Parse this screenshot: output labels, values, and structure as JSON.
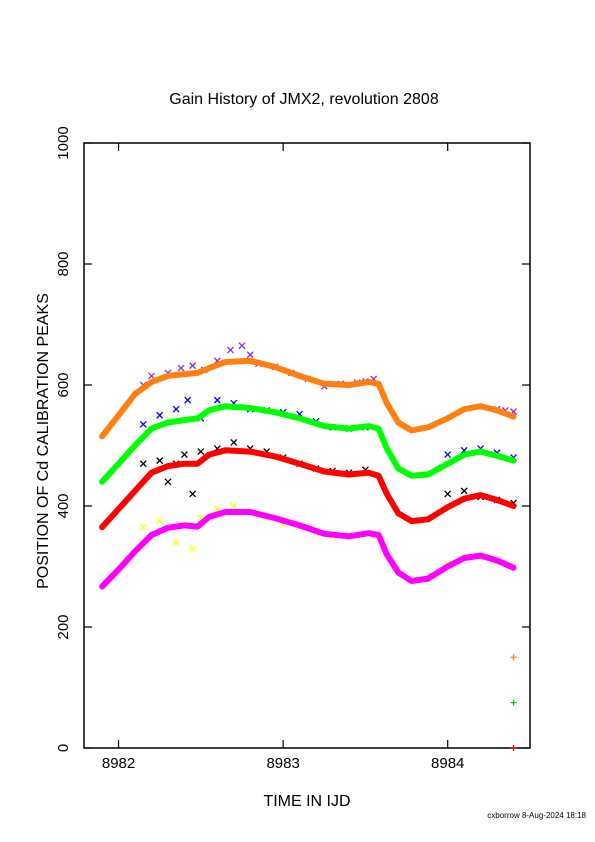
{
  "chart_data": {
    "type": "scatter",
    "title": "Gain History of JMX2, revolution 2808",
    "xlabel": "TIME IN IJD",
    "ylabel": "POSITION OF Cd CALIBRATION PEAKS",
    "xlim": [
      8981.79,
      8984.5
    ],
    "ylim": [
      0,
      1000
    ],
    "x_ticks": [
      8982,
      8983,
      8984
    ],
    "y_ticks": [
      0,
      200,
      400,
      600,
      800,
      1000
    ],
    "grid": false,
    "footer": "cxborrow  8-Aug-2024 18:18",
    "series": [
      {
        "color": "#8a2be2",
        "marker": "x",
        "points": [
          [
            8982.15,
            600
          ],
          [
            8982.2,
            615
          ],
          [
            8982.3,
            620
          ],
          [
            8982.38,
            628
          ],
          [
            8982.45,
            632
          ],
          [
            8982.52,
            625
          ],
          [
            8982.6,
            640
          ],
          [
            8982.68,
            658
          ],
          [
            8982.75,
            665
          ],
          [
            8982.8,
            650
          ],
          [
            8982.85,
            635
          ],
          [
            8982.95,
            630
          ],
          [
            8983.05,
            620
          ],
          [
            8983.15,
            610
          ],
          [
            8983.25,
            598
          ],
          [
            8983.35,
            602
          ],
          [
            8983.45,
            604
          ],
          [
            8983.5,
            606
          ],
          [
            8983.55,
            610
          ],
          [
            8984.3,
            560
          ],
          [
            8984.35,
            558
          ],
          [
            8984.4,
            556
          ]
        ]
      },
      {
        "color": "#ff7f11",
        "marker": "line",
        "points": [
          [
            8981.9,
            515
          ],
          [
            8982,
            550
          ],
          [
            8982.1,
            585
          ],
          [
            8982.2,
            605
          ],
          [
            8982.3,
            615
          ],
          [
            8982.4,
            618
          ],
          [
            8982.48,
            620
          ],
          [
            8982.55,
            628
          ],
          [
            8982.65,
            638
          ],
          [
            8982.8,
            640
          ],
          [
            8982.95,
            630
          ],
          [
            8983.1,
            615
          ],
          [
            8983.25,
            602
          ],
          [
            8983.4,
            600
          ],
          [
            8983.52,
            605
          ],
          [
            8983.58,
            602
          ],
          [
            8983.63,
            570
          ],
          [
            8983.7,
            538
          ],
          [
            8983.78,
            525
          ],
          [
            8983.88,
            530
          ],
          [
            8984,
            545
          ],
          [
            8984.1,
            560
          ],
          [
            8984.2,
            565
          ],
          [
            8984.3,
            558
          ],
          [
            8984.4,
            548
          ]
        ]
      },
      {
        "color": "#0000ff",
        "marker": "x",
        "points": [
          [
            8982.15,
            535
          ],
          [
            8982.25,
            550
          ],
          [
            8982.35,
            560
          ],
          [
            8982.42,
            575
          ],
          [
            8982.5,
            545
          ],
          [
            8982.6,
            575
          ],
          [
            8982.7,
            570
          ],
          [
            8982.8,
            560
          ],
          [
            8982.9,
            558
          ],
          [
            8983,
            555
          ],
          [
            8983.1,
            552
          ],
          [
            8983.2,
            540
          ],
          [
            8983.3,
            530
          ],
          [
            8983.4,
            528
          ],
          [
            8983.5,
            530
          ],
          [
            8984,
            485
          ],
          [
            8984.1,
            492
          ],
          [
            8984.2,
            495
          ],
          [
            8984.3,
            488
          ],
          [
            8984.4,
            480
          ]
        ]
      },
      {
        "color": "#00ff00",
        "marker": "line",
        "points": [
          [
            8981.9,
            440
          ],
          [
            8982,
            470
          ],
          [
            8982.1,
            500
          ],
          [
            8982.2,
            528
          ],
          [
            8982.3,
            538
          ],
          [
            8982.4,
            542
          ],
          [
            8982.48,
            545
          ],
          [
            8982.55,
            558
          ],
          [
            8982.65,
            565
          ],
          [
            8982.8,
            562
          ],
          [
            8982.95,
            555
          ],
          [
            8983.1,
            545
          ],
          [
            8983.25,
            532
          ],
          [
            8983.4,
            528
          ],
          [
            8983.52,
            532
          ],
          [
            8983.58,
            528
          ],
          [
            8983.63,
            495
          ],
          [
            8983.7,
            462
          ],
          [
            8983.78,
            450
          ],
          [
            8983.88,
            452
          ],
          [
            8984,
            470
          ],
          [
            8984.1,
            485
          ],
          [
            8984.2,
            490
          ],
          [
            8984.3,
            483
          ],
          [
            8984.4,
            475
          ]
        ]
      },
      {
        "color": "#000000",
        "marker": "x",
        "points": [
          [
            8982.15,
            470
          ],
          [
            8982.25,
            475
          ],
          [
            8982.3,
            440
          ],
          [
            8982.35,
            470
          ],
          [
            8982.4,
            485
          ],
          [
            8982.45,
            420
          ],
          [
            8982.5,
            490
          ],
          [
            8982.6,
            495
          ],
          [
            8982.7,
            505
          ],
          [
            8982.8,
            495
          ],
          [
            8982.9,
            490
          ],
          [
            8983,
            480
          ],
          [
            8983.1,
            470
          ],
          [
            8983.2,
            462
          ],
          [
            8983.3,
            458
          ],
          [
            8983.4,
            455
          ],
          [
            8983.5,
            460
          ],
          [
            8984,
            420
          ],
          [
            8984.1,
            425
          ],
          [
            8984.2,
            415
          ],
          [
            8984.3,
            410
          ],
          [
            8984.4,
            405
          ]
        ]
      },
      {
        "color": "#ff0000",
        "marker": "line",
        "points": [
          [
            8981.9,
            365
          ],
          [
            8982,
            395
          ],
          [
            8982.1,
            425
          ],
          [
            8982.2,
            455
          ],
          [
            8982.3,
            466
          ],
          [
            8982.4,
            470
          ],
          [
            8982.48,
            470
          ],
          [
            8982.55,
            485
          ],
          [
            8982.65,
            492
          ],
          [
            8982.8,
            490
          ],
          [
            8982.95,
            482
          ],
          [
            8983.1,
            470
          ],
          [
            8983.25,
            457
          ],
          [
            8983.4,
            452
          ],
          [
            8983.52,
            455
          ],
          [
            8983.58,
            450
          ],
          [
            8983.63,
            420
          ],
          [
            8983.7,
            388
          ],
          [
            8983.78,
            375
          ],
          [
            8983.88,
            378
          ],
          [
            8984,
            398
          ],
          [
            8984.1,
            412
          ],
          [
            8984.2,
            418
          ],
          [
            8984.3,
            410
          ],
          [
            8984.4,
            400
          ]
        ]
      },
      {
        "color": "#ffff00",
        "marker": "x",
        "points": [
          [
            8982.15,
            365
          ],
          [
            8982.25,
            375
          ],
          [
            8982.35,
            340
          ],
          [
            8982.45,
            330
          ],
          [
            8982.5,
            380
          ],
          [
            8982.6,
            395
          ],
          [
            8982.7,
            400
          ],
          [
            8982.8,
            390
          ],
          [
            8982.9,
            380
          ],
          [
            8983,
            370
          ],
          [
            8983.1,
            365
          ],
          [
            8983.2,
            355
          ],
          [
            8983.3,
            350
          ],
          [
            8983.4,
            352
          ],
          [
            8983.5,
            355
          ],
          [
            8983.8,
            280
          ],
          [
            8983.9,
            285
          ],
          [
            8984,
            305
          ],
          [
            8984.1,
            315
          ],
          [
            8984.2,
            318
          ],
          [
            8984.3,
            308
          ],
          [
            8984.4,
            300
          ]
        ]
      },
      {
        "color": "#ff00ff",
        "marker": "line",
        "points": [
          [
            8981.9,
            267
          ],
          [
            8982,
            295
          ],
          [
            8982.1,
            325
          ],
          [
            8982.2,
            352
          ],
          [
            8982.3,
            364
          ],
          [
            8982.4,
            368
          ],
          [
            8982.48,
            366
          ],
          [
            8982.55,
            382
          ],
          [
            8982.65,
            390
          ],
          [
            8982.8,
            390
          ],
          [
            8982.95,
            380
          ],
          [
            8983.1,
            368
          ],
          [
            8983.25,
            354
          ],
          [
            8983.4,
            350
          ],
          [
            8983.52,
            355
          ],
          [
            8983.58,
            352
          ],
          [
            8983.63,
            320
          ],
          [
            8983.7,
            290
          ],
          [
            8983.78,
            276
          ],
          [
            8983.88,
            280
          ],
          [
            8984,
            300
          ],
          [
            8984.1,
            314
          ],
          [
            8984.2,
            318
          ],
          [
            8984.3,
            310
          ],
          [
            8984.4,
            298
          ]
        ]
      },
      {
        "color": "#ff7f11",
        "marker": "+",
        "points": [
          [
            8984.4,
            150
          ]
        ]
      },
      {
        "color": "#00cc00",
        "marker": "+",
        "points": [
          [
            8984.4,
            75
          ]
        ]
      },
      {
        "color": "#ff0000",
        "marker": "+",
        "points": [
          [
            8984.4,
            0
          ]
        ]
      }
    ]
  }
}
